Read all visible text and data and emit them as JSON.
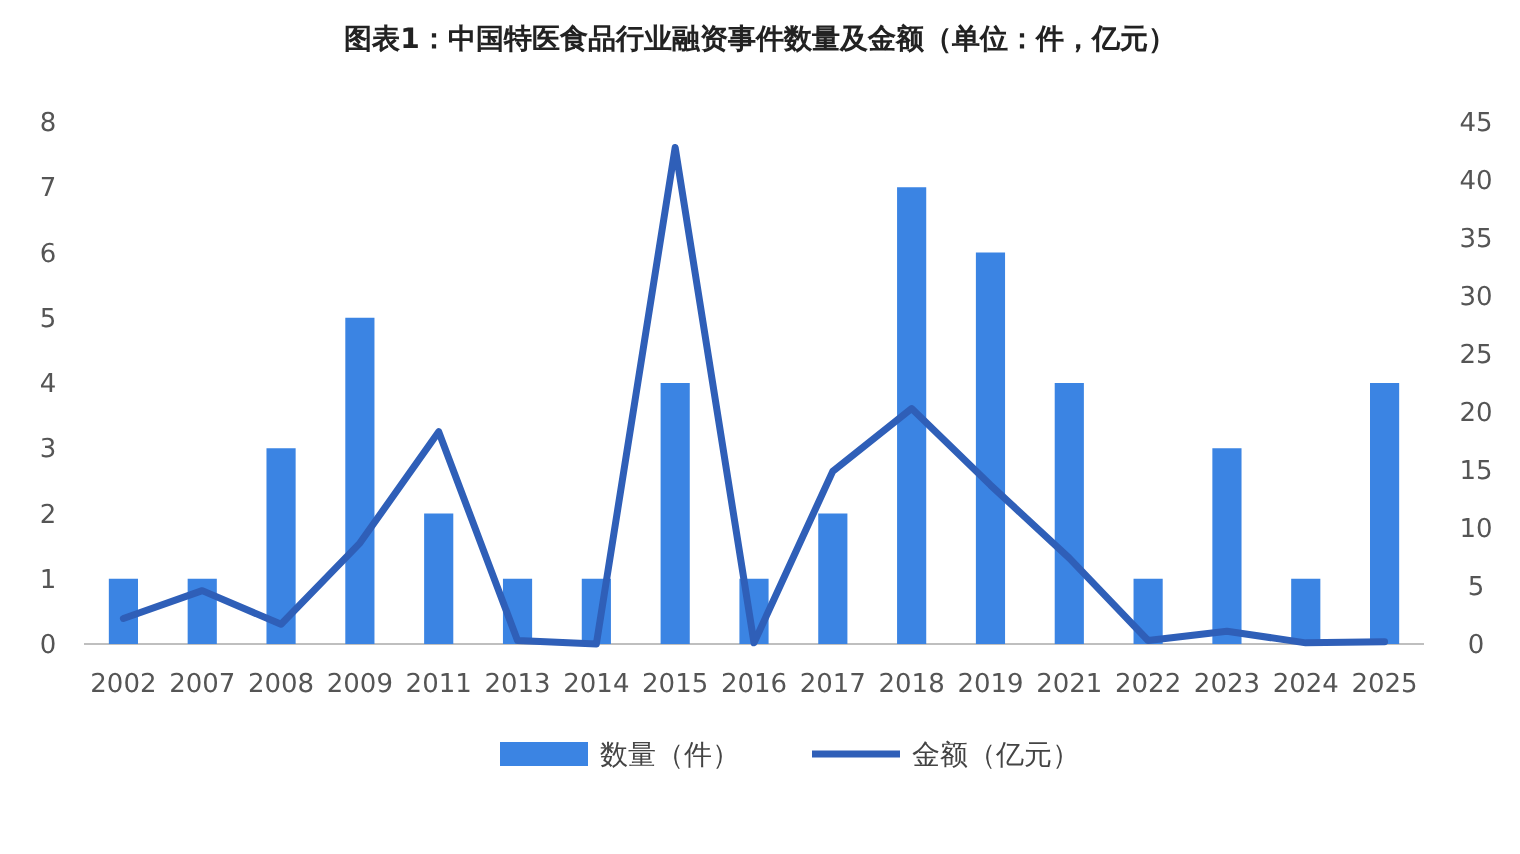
{
  "chart_data": {
    "type": "bar",
    "title": "图表1：中国特医食品行业融资事件数量及金额（单位：件，亿元）",
    "categories": [
      "2002",
      "2007",
      "2008",
      "2009",
      "2011",
      "2013",
      "2014",
      "2015",
      "2016",
      "2017",
      "2018",
      "2019",
      "2021",
      "2022",
      "2023",
      "2024",
      "2025"
    ],
    "series": [
      {
        "name": "数量（件）",
        "color": "#3b84e3",
        "values": [
          1,
          1,
          3,
          5,
          2,
          1,
          1,
          4,
          1,
          2,
          7,
          6,
          4,
          1,
          3,
          1,
          4
        ]
      },
      {
        "name": "金额（亿元）",
        "type": "line",
        "axis": "y2",
        "color": "#2f5fb8",
        "values": [
          2.2,
          4.6,
          1.7,
          8.7,
          18.3,
          0.3,
          0,
          42.8,
          0.1,
          14.9,
          20.3,
          13.7,
          7.4,
          0.3,
          1.1,
          0.1,
          0.2
        ]
      }
    ],
    "ylim": [
      0,
      8
    ],
    "yticks": [
      0,
      1,
      2,
      3,
      4,
      5,
      6,
      7,
      8
    ],
    "y2lim": [
      0,
      45
    ],
    "y2ticks": [
      0,
      5,
      10,
      15,
      20,
      25,
      30,
      35,
      40,
      45
    ],
    "legend": "bottom"
  }
}
